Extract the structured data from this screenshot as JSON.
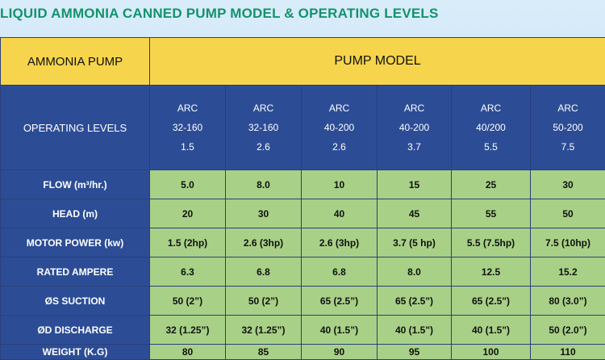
{
  "title": "LIQUID AMMONIA CANNED PUMP MODEL & OPERATING LEVELS",
  "header": {
    "pump_label": "AMMONIA PUMP",
    "model_label": "PUMP MODEL"
  },
  "operating_levels_label": "OPERATING LEVELS",
  "models": [
    {
      "line1": "ARC",
      "line2": "32-160",
      "line3": "1.5"
    },
    {
      "line1": "ARC",
      "line2": "32-160",
      "line3": "2.6"
    },
    {
      "line1": "ARC",
      "line2": "40-200",
      "line3": "2.6"
    },
    {
      "line1": "ARC",
      "line2": "40-200",
      "line3": "3.7"
    },
    {
      "line1": "ARC",
      "line2": "40/200",
      "line3": "5.5"
    },
    {
      "line1": "ARC",
      "line2": "50-200",
      "line3": "7.5"
    }
  ],
  "rows": [
    {
      "label": "FLOW (m³/hr.)",
      "values": [
        "5.0",
        "8.0",
        "10",
        "15",
        "25",
        "30"
      ]
    },
    {
      "label": "HEAD (m)",
      "values": [
        "20",
        "30",
        "40",
        "45",
        "55",
        "50"
      ]
    },
    {
      "label": "MOTOR POWER (kw)",
      "values": [
        "1.5 (2hp)",
        "2.6 (3hp)",
        "2.6 (3hp)",
        "3.7 (5 hp)",
        "5.5 (7.5hp)",
        "7.5 (10hp)"
      ]
    },
    {
      "label": "RATED AMPERE",
      "values": [
        "6.3",
        "6.8",
        "6.8",
        "8.0",
        "12.5",
        "15.2"
      ]
    },
    {
      "label": "ØS SUCTION",
      "values": [
        "50 (2”)",
        "50 (2”)",
        "65 (2.5”)",
        "65 (2.5\")",
        "65 (2.5\")",
        "80 (3.0”)"
      ]
    },
    {
      "label": "ØD DISCHARGE",
      "values": [
        "32 (1.25”)",
        "32 (1.25”)",
        "40 (1.5”)",
        "40 (1.5\")",
        "40 (1.5\")",
        "50 (2.0”)"
      ]
    },
    {
      "label": "WEIGHT (K.G)",
      "values": [
        "80",
        "85",
        "90",
        "95",
        "100",
        "110"
      ]
    }
  ]
}
